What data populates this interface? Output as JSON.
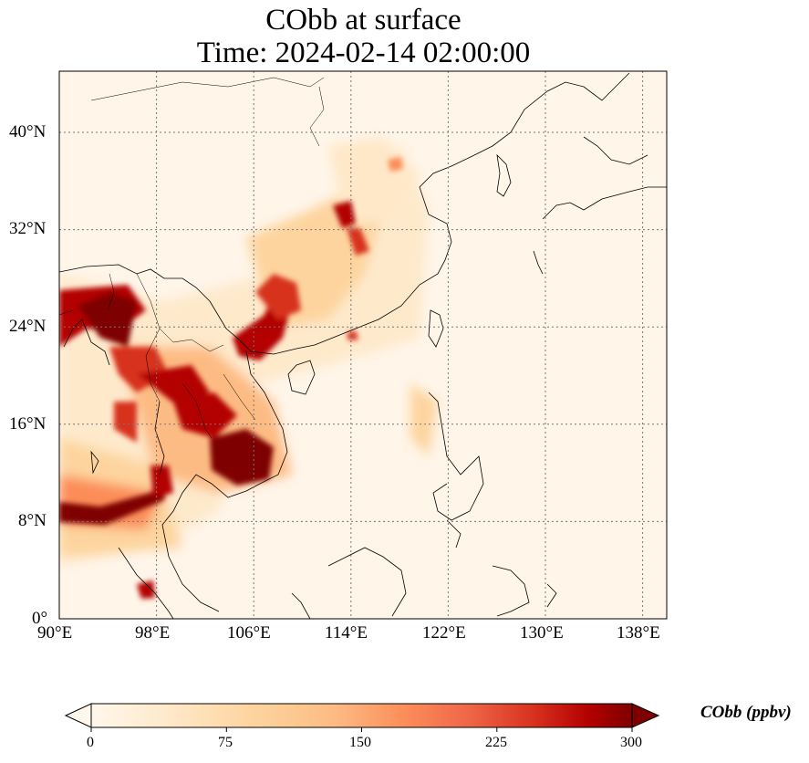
{
  "title": {
    "line1": "CObb at surface",
    "line2": "Time: 2024-02-14 02:00:00"
  },
  "map": {
    "lon_range": [
      90,
      140
    ],
    "lat_range": [
      0,
      40
    ],
    "lon_ticks": [
      "90°E",
      "98°E",
      "106°E",
      "114°E",
      "122°E",
      "130°E",
      "138°E"
    ],
    "lat_ticks": [
      "0°",
      "8°N",
      "16°N",
      "24°N",
      "32°N",
      "40°N"
    ],
    "gridlines": "dotted"
  },
  "colorbar": {
    "label": "CObb (ppbv)",
    "ticks": [
      "0",
      "75",
      "150",
      "225",
      "300"
    ],
    "range": [
      0,
      300
    ],
    "extend": "both",
    "colormap": "OrRd",
    "colors": [
      "#fff7ec",
      "#fee8c8",
      "#fdd49e",
      "#fdbb84",
      "#fc8d59",
      "#ef6548",
      "#d7301f",
      "#b30000",
      "#7f0000"
    ]
  }
}
